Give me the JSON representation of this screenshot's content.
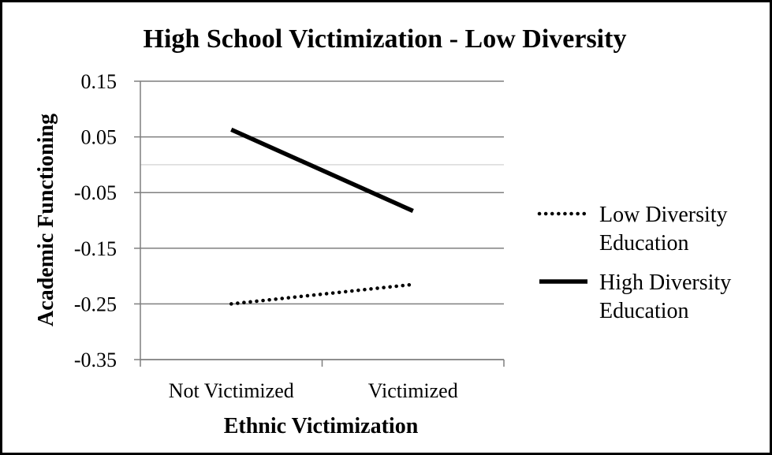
{
  "chart_data": {
    "type": "line",
    "title": "High School Victimization - Low Diversity",
    "xlabel": "Ethnic Victimization",
    "ylabel": "Academic Functioning",
    "categories": [
      "Not Victimized",
      "Victimized"
    ],
    "ylim": [
      -0.35,
      0.15
    ],
    "yticks": [
      0.15,
      0.05,
      -0.05,
      -0.15,
      -0.25,
      -0.35
    ],
    "ytick_labels": [
      "0.15",
      "0.05",
      "-0.05",
      "-0.15",
      "-0.25",
      "-0.35"
    ],
    "grid": true,
    "legend_position": "right",
    "series": [
      {
        "name_lines": [
          "Low Diversity",
          "Education"
        ],
        "values": [
          -0.25,
          -0.215
        ],
        "line_style": "dotted",
        "color": "#000000"
      },
      {
        "name_lines": [
          "High Diversity",
          "Education"
        ],
        "values": [
          0.063,
          -0.083
        ],
        "line_style": "solid",
        "color": "#000000"
      }
    ]
  }
}
